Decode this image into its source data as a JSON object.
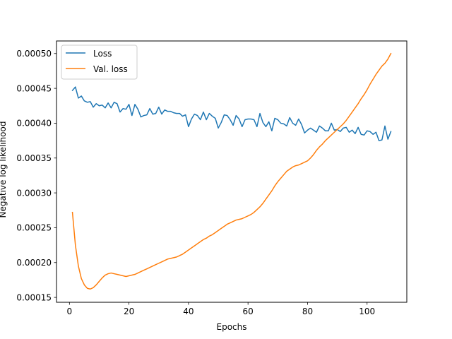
{
  "chart_data": {
    "type": "line",
    "title": "",
    "xlabel": "Epochs",
    "ylabel": "Negative log likelihood",
    "xlim": [
      -4.35,
      113.35
    ],
    "ylim": [
      0.000143,
      0.000518
    ],
    "xticks": [
      0,
      20,
      40,
      60,
      80,
      100
    ],
    "xtick_labels": [
      "0",
      "20",
      "40",
      "60",
      "80",
      "100"
    ],
    "yticks": [
      0.00015,
      0.0002,
      0.00025,
      0.0003,
      0.00035,
      0.0004,
      0.00045,
      0.0005
    ],
    "ytick_labels": [
      "0.00015",
      "0.00020",
      "0.00025",
      "0.00030",
      "0.00035",
      "0.00040",
      "0.00045",
      "0.00050"
    ],
    "grid": false,
    "legend": "top-left",
    "series": [
      {
        "name": "Loss",
        "color": "#1f77b4",
        "x": [
          1,
          2,
          3,
          4,
          5,
          6,
          7,
          8,
          9,
          10,
          11,
          12,
          13,
          14,
          15,
          16,
          17,
          18,
          19,
          20,
          21,
          22,
          23,
          24,
          25,
          26,
          27,
          28,
          29,
          30,
          31,
          32,
          33,
          34,
          35,
          36,
          37,
          38,
          39,
          40,
          41,
          42,
          43,
          44,
          45,
          46,
          47,
          48,
          49,
          50,
          51,
          52,
          53,
          54,
          55,
          56,
          57,
          58,
          59,
          60,
          61,
          62,
          63,
          64,
          65,
          66,
          67,
          68,
          69,
          70,
          71,
          72,
          73,
          74,
          75,
          76,
          77,
          78,
          79,
          80,
          81,
          82,
          83,
          84,
          85,
          86,
          87,
          88,
          89,
          90,
          91,
          92,
          93,
          94,
          95,
          96,
          97,
          98,
          99,
          100,
          101,
          102,
          103,
          104,
          105,
          106,
          107,
          108
        ],
        "values": [
          0.000447,
          0.000452,
          0.000436,
          0.000439,
          0.000432,
          0.00043,
          0.000431,
          0.000423,
          0.000428,
          0.000425,
          0.000426,
          0.000422,
          0.000429,
          0.000422,
          0.00043,
          0.000428,
          0.000416,
          0.000421,
          0.00042,
          0.000427,
          0.000411,
          0.000427,
          0.00042,
          0.000409,
          0.000411,
          0.000412,
          0.000421,
          0.000413,
          0.000414,
          0.000423,
          0.000413,
          0.000419,
          0.000417,
          0.000417,
          0.000415,
          0.000414,
          0.000414,
          0.00041,
          0.000412,
          0.000395,
          0.000406,
          0.000413,
          0.000411,
          0.000405,
          0.000416,
          0.000405,
          0.000414,
          0.00041,
          0.000407,
          0.000393,
          0.000401,
          0.000412,
          0.000411,
          0.000405,
          0.000397,
          0.000411,
          0.000406,
          0.000395,
          0.000405,
          0.000406,
          0.000406,
          0.000405,
          0.000395,
          0.000414,
          0.000401,
          0.000395,
          0.000402,
          0.000389,
          0.000407,
          0.000405,
          0.0004,
          0.000399,
          0.000396,
          0.000408,
          0.0004,
          0.000397,
          0.000406,
          0.000398,
          0.000386,
          0.00039,
          0.000393,
          0.00039,
          0.000387,
          0.000396,
          0.000393,
          0.000389,
          0.000389,
          0.0004,
          0.00039,
          0.000391,
          0.000388,
          0.000393,
          0.000394,
          0.000387,
          0.00039,
          0.000385,
          0.000394,
          0.000384,
          0.000383,
          0.000389,
          0.000388,
          0.000384,
          0.000387,
          0.000375,
          0.000376,
          0.000396,
          0.000377,
          0.000388
        ]
      },
      {
        "name": "Val. loss",
        "color": "#ff7f0e",
        "x": [
          1,
          2,
          3,
          4,
          5,
          6,
          7,
          8,
          9,
          10,
          11,
          12,
          13,
          14,
          15,
          16,
          17,
          18,
          19,
          20,
          21,
          22,
          23,
          24,
          25,
          26,
          27,
          28,
          29,
          30,
          31,
          32,
          33,
          34,
          35,
          36,
          37,
          38,
          39,
          40,
          41,
          42,
          43,
          44,
          45,
          46,
          47,
          48,
          49,
          50,
          51,
          52,
          53,
          54,
          55,
          56,
          57,
          58,
          59,
          60,
          61,
          62,
          63,
          64,
          65,
          66,
          67,
          68,
          69,
          70,
          71,
          72,
          73,
          74,
          75,
          76,
          77,
          78,
          79,
          80,
          81,
          82,
          83,
          84,
          85,
          86,
          87,
          88,
          89,
          90,
          91,
          92,
          93,
          94,
          95,
          96,
          97,
          98,
          99,
          100,
          101,
          102,
          103,
          104,
          105,
          106,
          107,
          108
        ],
        "values": [
          0.000272,
          0.000225,
          0.000195,
          0.000177,
          0.000168,
          0.000163,
          0.000162,
          0.000164,
          0.000168,
          0.000173,
          0.000178,
          0.000182,
          0.000184,
          0.000185,
          0.000184,
          0.000183,
          0.000182,
          0.000181,
          0.00018,
          0.000181,
          0.000182,
          0.000183,
          0.000185,
          0.000187,
          0.000189,
          0.000191,
          0.000193,
          0.000195,
          0.000197,
          0.000199,
          0.000201,
          0.000203,
          0.000205,
          0.000206,
          0.000207,
          0.000208,
          0.00021,
          0.000212,
          0.000215,
          0.000218,
          0.000221,
          0.000224,
          0.000227,
          0.00023,
          0.000233,
          0.000235,
          0.000238,
          0.00024,
          0.000243,
          0.000246,
          0.000249,
          0.000252,
          0.000255,
          0.000257,
          0.000259,
          0.000261,
          0.000262,
          0.000263,
          0.000265,
          0.000267,
          0.000269,
          0.000272,
          0.000276,
          0.00028,
          0.000285,
          0.000291,
          0.000297,
          0.000303,
          0.00031,
          0.000316,
          0.000321,
          0.000326,
          0.000331,
          0.000334,
          0.000337,
          0.000339,
          0.00034,
          0.000342,
          0.000344,
          0.000346,
          0.00035,
          0.000355,
          0.000361,
          0.000366,
          0.00037,
          0.000375,
          0.000379,
          0.000383,
          0.000387,
          0.000391,
          0.000395,
          0.000399,
          0.000404,
          0.00041,
          0.000416,
          0.000422,
          0.000428,
          0.000435,
          0.000441,
          0.000448,
          0.000456,
          0.000463,
          0.00047,
          0.000476,
          0.000482,
          0.000486,
          0.000492,
          0.0005
        ]
      }
    ]
  }
}
